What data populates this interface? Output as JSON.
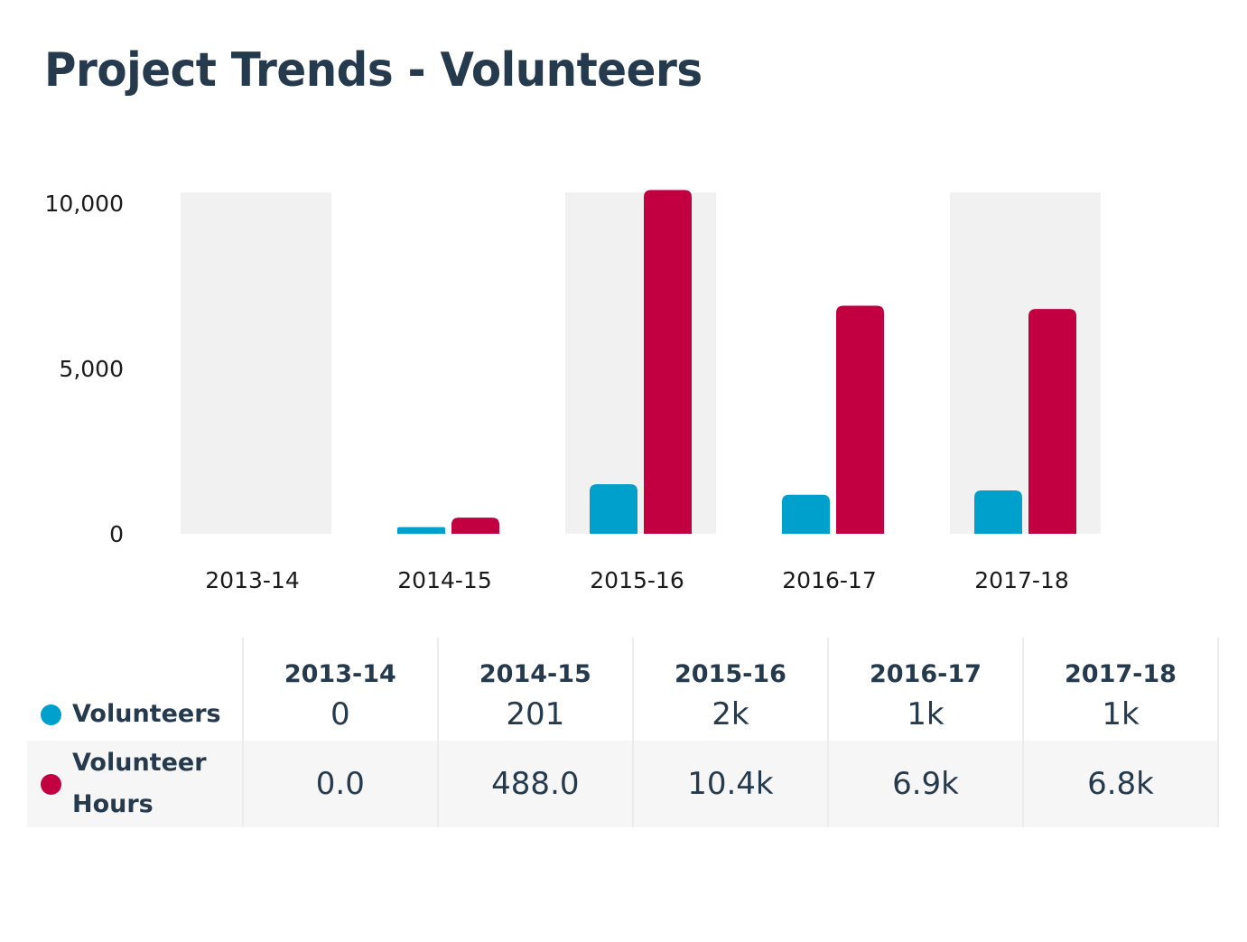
{
  "title": "Project Trends - Volunteers",
  "colors": {
    "volunteers": "#00a0cc",
    "volunteer_hours": "#c20041",
    "band": "#f1f1f1",
    "title": "#263a4e"
  },
  "chart_data": {
    "type": "bar",
    "title": "Project Trends - Volunteers",
    "xlabel": "",
    "ylabel": "",
    "categories": [
      "2013-14",
      "2014-15",
      "2015-16",
      "2016-17",
      "2017-18"
    ],
    "series": [
      {
        "name": "Volunteers",
        "color": "#00a0cc",
        "values": [
          0,
          201,
          1500,
          1180,
          1310
        ]
      },
      {
        "name": "Volunteer Hours",
        "color": "#c20041",
        "values": [
          0,
          488,
          10400,
          6900,
          6800
        ]
      }
    ],
    "ylim": [
      0,
      10400
    ],
    "yticks": [
      0,
      5000,
      10000
    ],
    "ytick_labels": [
      "0",
      "5,000",
      "10,000"
    ],
    "grid": false,
    "alternating_bands": [
      true,
      false,
      true,
      false,
      true
    ],
    "legend": "table-below"
  },
  "table": {
    "columns": [
      "2013-14",
      "2014-15",
      "2015-16",
      "2016-17",
      "2017-18"
    ],
    "rows": [
      {
        "series": "Volunteers",
        "values": [
          "0",
          "201",
          "2k",
          "1k",
          "1k"
        ]
      },
      {
        "series_line1": "Volunteer",
        "series_line2": "Hours",
        "values": [
          "0.0",
          "488.0",
          "10.4k",
          "6.9k",
          "6.8k"
        ]
      }
    ]
  }
}
